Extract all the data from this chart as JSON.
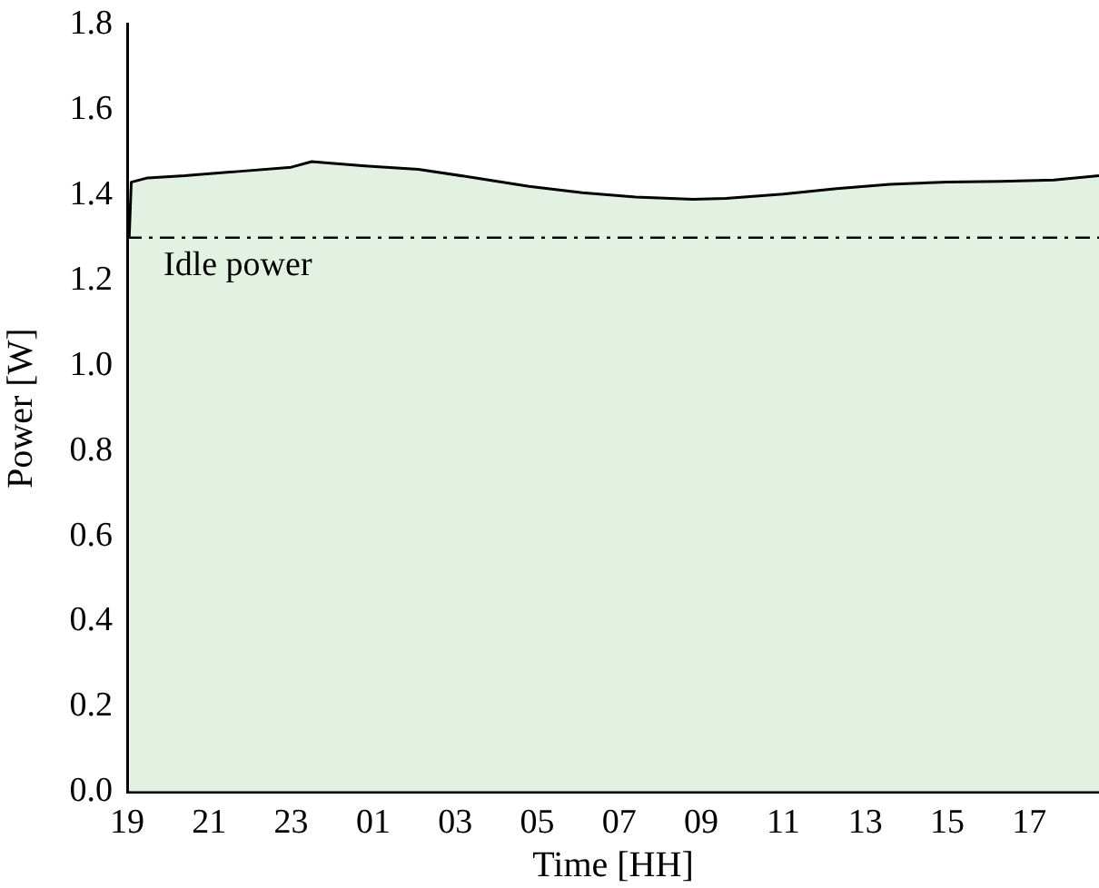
{
  "chart_data": {
    "type": "area",
    "xlabel": "Time [HH]",
    "ylabel": "Power [W]",
    "x": [
      "--01-01T19:03",
      "--01-01T19:06",
      "--01-01T19:30",
      "--01-01T20:24",
      "--01-01T21:42",
      "--01-01T23:00",
      "--01-01T23:30",
      "--01-01T23:54",
      "--01-02T00:48",
      "--01-02T02:06",
      "--01-02T03:30",
      "--01-02T04:48",
      "--01-02T06:06",
      "--01-02T07:24",
      "--01-02T08:48",
      "--01-02T09:36",
      "--01-02T11:00",
      "--01-02T12:18",
      "--01-02T13:36",
      "--01-02T15:00",
      "--01-02T16:18",
      "--01-02T17:36",
      "--01-02T18:42"
    ],
    "series": [
      {
        "color": "#000000",
        "values": [
          1.3,
          1.43,
          1.44,
          1.445,
          1.455,
          1.465,
          1.478,
          1.475,
          1.468,
          1.46,
          1.44,
          1.42,
          1.405,
          1.395,
          1.39,
          1.392,
          1.402,
          1.415,
          1.425,
          1.43,
          1.432,
          1.435,
          1.445
        ]
      }
    ],
    "xlim": [
      "--01-01T19:00",
      "--01-02T18:42"
    ],
    "xticks": [
      {
        "value": "--01-01T19:00",
        "label": "19"
      },
      {
        "value": "--01-01T21:00",
        "label": "21"
      },
      {
        "value": "--01-01T23:00",
        "label": "23"
      },
      {
        "value": "--01-02T01:00",
        "label": "01"
      },
      {
        "value": "--01-02T03:00",
        "label": "03"
      },
      {
        "value": "--01-02T05:00",
        "label": "05"
      },
      {
        "value": "--01-02T07:00",
        "label": "07"
      },
      {
        "value": "--01-02T09:00",
        "label": "09"
      },
      {
        "value": "--01-02T11:00",
        "label": "11"
      },
      {
        "value": "--01-02T13:00",
        "label": "13"
      },
      {
        "value": "--01-02T15:00",
        "label": "15"
      },
      {
        "value": "--01-02T17:00",
        "label": "17"
      }
    ],
    "ylim": [
      0,
      1.8
    ],
    "yticks": [
      {
        "value": 0,
        "label": "0.0"
      },
      {
        "value": 0.2,
        "label": "0.2"
      },
      {
        "value": 0.4,
        "label": "0.4"
      },
      {
        "value": 0.6,
        "label": "0.6"
      },
      {
        "value": 0.8,
        "label": "0.8"
      },
      {
        "value": 1.0,
        "label": "1.0"
      },
      {
        "value": 1.2,
        "label": "1.2"
      },
      {
        "value": 1.4,
        "label": "1.4"
      },
      {
        "value": 1.6,
        "label": "1.6"
      },
      {
        "value": 1.8,
        "label": "1.8"
      }
    ],
    "ref_lines": [
      {
        "axis": "y",
        "value": 1.3,
        "label": "Idle power",
        "line_style": "dashdot",
        "color": "#000000"
      }
    ],
    "grid": false,
    "legend": false
  }
}
